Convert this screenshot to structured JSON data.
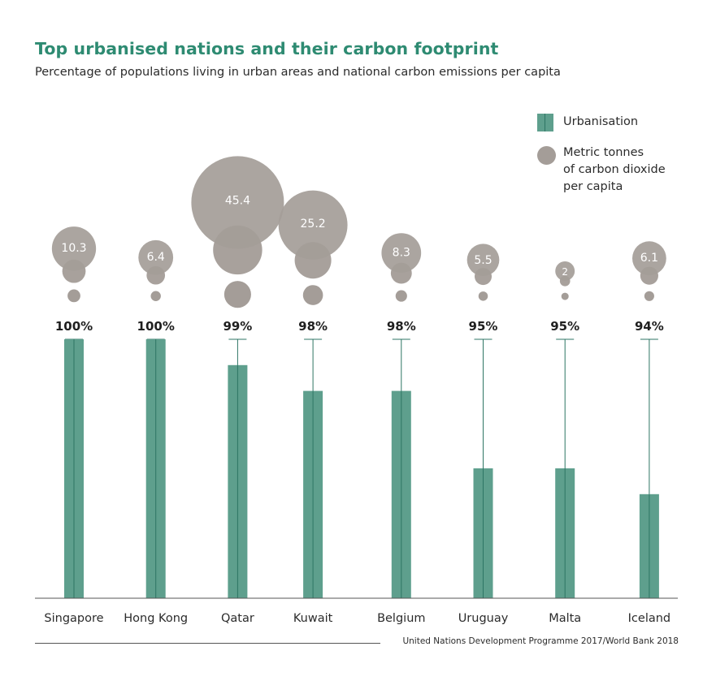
{
  "title": "Top urbanised nations and their carbon footprint",
  "subtitle": "Percentage of populations living in urban areas and national carbon emissions per capita",
  "legend": {
    "urbanisation": "Urbanisation",
    "co2": "Metric tonnes\nof carbon dioxide\nper capita"
  },
  "source": "United Nations Development Programme 2017/World Bank 2018",
  "colors": {
    "title": "#2e8b72",
    "bar": "#5e9f8d",
    "bar_line": "#2e7564",
    "bubble": "#a49d98",
    "bubble_text": "#ffffff"
  },
  "chart_data": {
    "type": "bar",
    "categories": [
      "Singapore",
      "Hong Kong",
      "Qatar",
      "Kuwait",
      "Belgium",
      "Uruguay",
      "Malta",
      "Iceland"
    ],
    "series": [
      {
        "name": "Urbanisation",
        "values": [
          100,
          100,
          99,
          98,
          98,
          95,
          95,
          94
        ],
        "labels": [
          "100%",
          "100%",
          "99%",
          "98%",
          "98%",
          "95%",
          "95%",
          "94%"
        ]
      },
      {
        "name": "Metric tonnes of carbon dioxide per capita",
        "values": [
          10.3,
          6.4,
          45.4,
          25.2,
          8.3,
          5.5,
          2,
          6.1
        ],
        "labels": [
          "10.3",
          "6.4",
          "45.4",
          "25.2",
          "8.3",
          "5.5",
          "2",
          "6.1"
        ]
      }
    ],
    "ylim": [
      90,
      100
    ],
    "grid": false,
    "legend_position": "top-right"
  }
}
